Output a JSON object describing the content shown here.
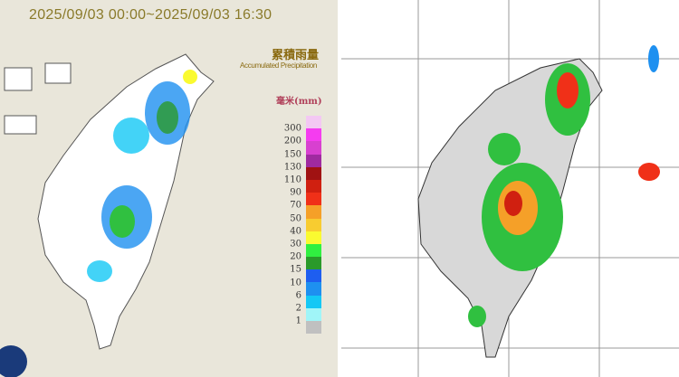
{
  "header": {
    "timestamp": "2025/09/03 00:00~2025/09/03 16:30"
  },
  "legend": {
    "title_zh": "累積雨量",
    "title_en": "Accumulated Precipitation",
    "unit": "毫米(mm)",
    "labels": [
      "300",
      "200",
      "150",
      "130",
      "110",
      "90",
      "70",
      "50",
      "40",
      "30",
      "20",
      "15",
      "10",
      "6",
      "2",
      "1"
    ],
    "colors": [
      "#f3c8f3",
      "#f53cf0",
      "#d840d0",
      "#a02aa0",
      "#a01212",
      "#d02010",
      "#f03018",
      "#f5a028",
      "#f8cc30",
      "#fafa30",
      "#30f040",
      "#2a9a2a",
      "#1e5ef0",
      "#1e90f0",
      "#14c8f5",
      "#a0f5f8",
      "#c0c0c0"
    ]
  },
  "colors": {
    "left_background": "#e9e6da",
    "right_background": "#ffffff",
    "land": "#d8d8d8"
  }
}
